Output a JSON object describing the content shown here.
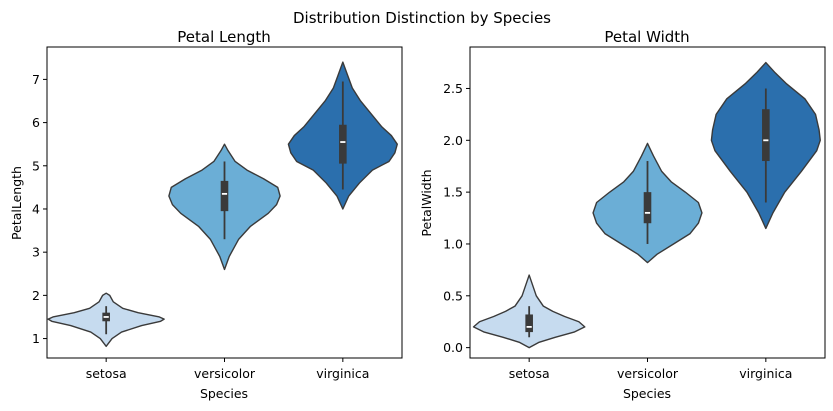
{
  "figure": {
    "suptitle": "Distribution Distinction by Species"
  },
  "chart_data": [
    {
      "type": "violin",
      "title": "Petal Length",
      "xlabel": "Species",
      "ylabel": "PetalLength",
      "categories": [
        "setosa",
        "versicolor",
        "virginica"
      ],
      "colors": [
        "#c6dbef",
        "#6baed6",
        "#2b6fad"
      ],
      "ylim": [
        0.55,
        7.75
      ],
      "yticks": [
        1,
        2,
        3,
        4,
        5,
        6,
        7
      ],
      "grid": false,
      "violins": [
        {
          "category": "setosa",
          "profile": [
            [
              0.82,
              0.0
            ],
            [
              1.0,
              0.05
            ],
            [
              1.15,
              0.13
            ],
            [
              1.3,
              0.3
            ],
            [
              1.4,
              0.46
            ],
            [
              1.45,
              0.49
            ],
            [
              1.5,
              0.45
            ],
            [
              1.6,
              0.27
            ],
            [
              1.7,
              0.14
            ],
            [
              1.85,
              0.06
            ],
            [
              2.0,
              0.03
            ],
            [
              2.05,
              0.0
            ]
          ],
          "q1": 1.4,
          "median": 1.5,
          "q3": 1.6,
          "whisker_low": 1.1,
          "whisker_high": 1.75
        },
        {
          "category": "versicolor",
          "profile": [
            [
              2.6,
              0.0
            ],
            [
              2.9,
              0.04
            ],
            [
              3.3,
              0.12
            ],
            [
              3.6,
              0.22
            ],
            [
              3.9,
              0.37
            ],
            [
              4.1,
              0.44
            ],
            [
              4.3,
              0.47
            ],
            [
              4.5,
              0.45
            ],
            [
              4.7,
              0.33
            ],
            [
              4.9,
              0.19
            ],
            [
              5.1,
              0.09
            ],
            [
              5.35,
              0.03
            ],
            [
              5.5,
              0.0
            ]
          ],
          "q1": 3.95,
          "median": 4.35,
          "q3": 4.65,
          "whisker_low": 3.3,
          "whisker_high": 5.1
        },
        {
          "category": "virginica",
          "profile": [
            [
              4.0,
              0.0
            ],
            [
              4.3,
              0.05
            ],
            [
              4.6,
              0.14
            ],
            [
              4.9,
              0.25
            ],
            [
              5.1,
              0.39
            ],
            [
              5.3,
              0.44
            ],
            [
              5.5,
              0.46
            ],
            [
              5.7,
              0.41
            ],
            [
              5.9,
              0.33
            ],
            [
              6.2,
              0.24
            ],
            [
              6.5,
              0.15
            ],
            [
              6.8,
              0.08
            ],
            [
              7.1,
              0.04
            ],
            [
              7.4,
              0.0
            ]
          ],
          "q1": 5.05,
          "median": 5.55,
          "q3": 5.95,
          "whisker_low": 4.45,
          "whisker_high": 6.95
        }
      ]
    },
    {
      "type": "violin",
      "title": "Petal Width",
      "xlabel": "Species",
      "ylabel": "PetalWidth",
      "categories": [
        "setosa",
        "versicolor",
        "virginica"
      ],
      "colors": [
        "#c6dbef",
        "#6baed6",
        "#2b6fad"
      ],
      "ylim": [
        -0.1,
        2.9
      ],
      "yticks": [
        0.0,
        0.5,
        1.0,
        1.5,
        2.0,
        2.5
      ],
      "grid": false,
      "violins": [
        {
          "category": "setosa",
          "profile": [
            [
              0.0,
              0.0
            ],
            [
              0.05,
              0.08
            ],
            [
              0.1,
              0.22
            ],
            [
              0.15,
              0.38
            ],
            [
              0.2,
              0.47
            ],
            [
              0.25,
              0.42
            ],
            [
              0.3,
              0.3
            ],
            [
              0.35,
              0.2
            ],
            [
              0.4,
              0.12
            ],
            [
              0.5,
              0.06
            ],
            [
              0.6,
              0.03
            ],
            [
              0.7,
              0.0
            ]
          ],
          "q1": 0.15,
          "median": 0.2,
          "q3": 0.32,
          "whisker_low": 0.1,
          "whisker_high": 0.4
        },
        {
          "category": "versicolor",
          "profile": [
            [
              0.82,
              0.0
            ],
            [
              0.9,
              0.08
            ],
            [
              1.0,
              0.22
            ],
            [
              1.1,
              0.36
            ],
            [
              1.2,
              0.43
            ],
            [
              1.3,
              0.46
            ],
            [
              1.4,
              0.43
            ],
            [
              1.5,
              0.32
            ],
            [
              1.6,
              0.2
            ],
            [
              1.7,
              0.12
            ],
            [
              1.85,
              0.05
            ],
            [
              1.97,
              0.0
            ]
          ],
          "q1": 1.2,
          "median": 1.3,
          "q3": 1.5,
          "whisker_low": 1.0,
          "whisker_high": 1.8
        },
        {
          "category": "virginica",
          "profile": [
            [
              1.15,
              0.0
            ],
            [
              1.3,
              0.06
            ],
            [
              1.5,
              0.16
            ],
            [
              1.7,
              0.3
            ],
            [
              1.9,
              0.43
            ],
            [
              2.0,
              0.46
            ],
            [
              2.1,
              0.45
            ],
            [
              2.25,
              0.42
            ],
            [
              2.4,
              0.33
            ],
            [
              2.55,
              0.17
            ],
            [
              2.65,
              0.08
            ],
            [
              2.75,
              0.0
            ]
          ],
          "q1": 1.8,
          "median": 2.0,
          "q3": 2.3,
          "whisker_low": 1.4,
          "whisker_high": 2.5
        }
      ]
    }
  ]
}
